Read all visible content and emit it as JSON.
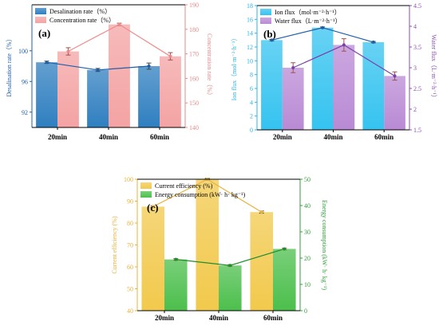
{
  "chart_data": [
    {
      "id": "a",
      "panel_label": "(a)",
      "type": "bar",
      "categories": [
        "20min",
        "40min",
        "60min"
      ],
      "ylabel_left": "Desalination rate（%）",
      "ylabel_right": "Concentration rate（%）",
      "left_axis": {
        "ylim": [
          90,
          106
        ],
        "ticks": [
          92,
          96,
          100
        ],
        "color": "#1f5fa8"
      },
      "right_axis": {
        "ylim": [
          140,
          190
        ],
        "ticks": [
          140,
          150,
          160,
          170,
          180,
          190
        ],
        "color": "#e58b8b"
      },
      "legend": [
        "Desalination rate（%）",
        "Concentration rate（%）"
      ],
      "legend_position": "top-left",
      "series": [
        {
          "name": "Desalination rate（%）",
          "axis": "left",
          "values": [
            98.5,
            97.5,
            98.0
          ],
          "errors": [
            0.15,
            0.2,
            0.4
          ],
          "line": true,
          "color": "#2f7fc0"
        },
        {
          "name": "Concentration rate（%）",
          "axis": "right",
          "values": [
            171,
            182,
            169
          ],
          "errors": [
            1.5,
            0.5,
            1.5
          ],
          "line": true,
          "color": "#f4a3a3"
        }
      ]
    },
    {
      "id": "b",
      "panel_label": "(b)",
      "type": "bar",
      "categories": [
        "20min",
        "40min",
        "60min"
      ],
      "ylabel_left": "Ion flux（mol·m⁻²·h⁻¹）",
      "ylabel_right": "Water flux（L·m⁻²·h⁻¹）",
      "left_axis": {
        "ylim": [
          0,
          18
        ],
        "ticks": [
          0,
          2,
          4,
          6,
          8,
          10,
          12,
          14,
          16,
          18
        ],
        "color": "#2ab4e6"
      },
      "right_axis": {
        "ylim": [
          1.5,
          4.5
        ],
        "ticks": [
          1.5,
          2.0,
          2.5,
          3.0,
          3.5,
          4.0,
          4.5
        ],
        "color": "#8a4fb3"
      },
      "legend": [
        "Ion flux（mol·m⁻²·h⁻¹）",
        "Water flux（L·m⁻²·h⁻¹）"
      ],
      "legend_position": "top-left",
      "series": [
        {
          "name": "Ion flux（mol·m⁻²·h⁻¹）",
          "axis": "left",
          "values": [
            13.0,
            14.8,
            12.7
          ],
          "errors": [
            0.1,
            0.1,
            0.1
          ],
          "line": true,
          "color": "#35c3f0"
        },
        {
          "name": "Water flux（L·m⁻²·h⁻¹）",
          "axis": "right",
          "values": [
            3.0,
            3.55,
            2.8
          ],
          "errors": [
            0.12,
            0.15,
            0.1
          ],
          "line": true,
          "color": "#b98ad4"
        }
      ]
    },
    {
      "id": "c",
      "panel_label": "(c)",
      "type": "bar",
      "categories": [
        "20min",
        "40min",
        "60min"
      ],
      "ylabel_left": "Current efficiency (%)",
      "ylabel_right": "Energy consumption (kW· h· kg⁻¹)",
      "left_axis": {
        "ylim": [
          40,
          100
        ],
        "ticks": [
          40,
          50,
          60,
          70,
          80,
          90,
          100
        ],
        "color": "#e8b23a"
      },
      "right_axis": {
        "ylim": [
          0,
          50
        ],
        "ticks": [
          0,
          10,
          20,
          30,
          40,
          50
        ],
        "color": "#2f9e3a"
      },
      "legend": [
        "Current efficiency (%)",
        "Energy consumption (kW· h· kg⁻¹)"
      ],
      "legend_position": "top-left",
      "series": [
        {
          "name": "Current efficiency (%)",
          "axis": "left",
          "values": [
            87.5,
            100,
            85
          ],
          "errors": [
            0.4,
            0.4,
            0.5
          ],
          "line": true,
          "color": "#f2c94c"
        },
        {
          "name": "Energy consumption (kW· h· kg⁻¹)",
          "axis": "right",
          "values": [
            19.5,
            17.2,
            23.5
          ],
          "errors": [
            0.3,
            0.3,
            0.3
          ],
          "line": true,
          "color": "#4cbf4c"
        }
      ]
    }
  ]
}
